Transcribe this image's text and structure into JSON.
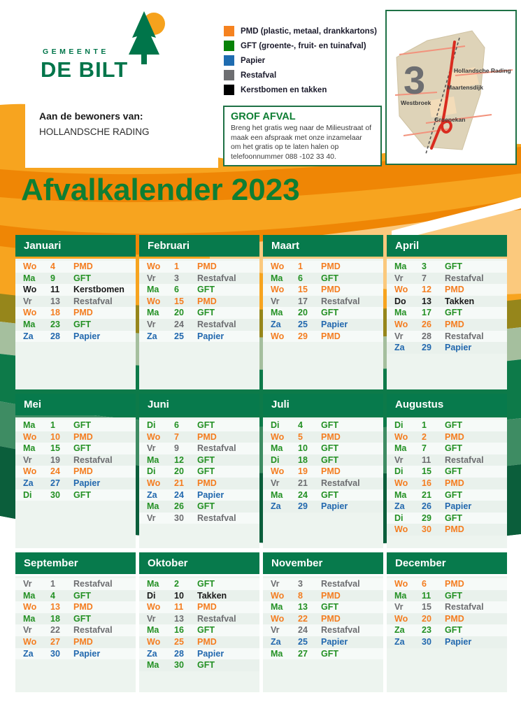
{
  "logo": {
    "top": "GEMEENTE",
    "bottom": "DE BILT"
  },
  "legend": {
    "items": [
      {
        "color": "#f58220",
        "label": "PMD (plastic, metaal, drankkartons)"
      },
      {
        "color": "#078207",
        "label": "GFT  (groente-, fruit- en tuinafval)"
      },
      {
        "color": "#1f6cb0",
        "label": "Papier"
      },
      {
        "color": "#6d6e71",
        "label": "Restafval"
      },
      {
        "color": "#000000",
        "label": "Kerstbomen en takken"
      }
    ]
  },
  "map": {
    "number": "3",
    "labels": [
      "Hollandsche Rading",
      "Maartensdijk",
      "Westbroek",
      "Groenekan"
    ]
  },
  "address": {
    "heading": "Aan de bewoners van:",
    "line": "HOLLANDSCHE RADING"
  },
  "grof_afval": {
    "title": "GROF AFVAL",
    "body": "Breng het gratis weg naar de Milieustraat of maak een afspraak met onze inzamelaar om het gratis op te laten halen op telefoonnummer 088 -102 33 40."
  },
  "title": "Afvalkalender 2023",
  "brand_colors": {
    "header_green": "#077a4c",
    "title_green": "#0e7e33",
    "logo_green": "#00754a",
    "orange": "#f7a41f"
  },
  "waste_colors": {
    "PMD": "#f47d20",
    "GFT": "#239023",
    "Papier": "#2268ae",
    "Restafval": "#6d6e71",
    "Kerstbomen": "#1a1a1a",
    "Takken": "#1a1a1a"
  },
  "months": [
    {
      "name": "Januari",
      "entries": [
        {
          "day": "Wo",
          "date": "4",
          "type": "PMD"
        },
        {
          "day": "Ma",
          "date": "9",
          "type": "GFT"
        },
        {
          "day": "Wo",
          "date": "11",
          "type": "Kerstbomen"
        },
        {
          "day": "Vr",
          "date": "13",
          "type": "Restafval"
        },
        {
          "day": "Wo",
          "date": "18",
          "type": "PMD"
        },
        {
          "day": "Ma",
          "date": "23",
          "type": "GFT"
        },
        {
          "day": "Za",
          "date": "28",
          "type": "Papier"
        }
      ]
    },
    {
      "name": "Februari",
      "entries": [
        {
          "day": "Wo",
          "date": "1",
          "type": "PMD"
        },
        {
          "day": "Vr",
          "date": "3",
          "type": "Restafval"
        },
        {
          "day": "Ma",
          "date": "6",
          "type": "GFT"
        },
        {
          "day": "Wo",
          "date": "15",
          "type": "PMD"
        },
        {
          "day": "Ma",
          "date": "20",
          "type": "GFT"
        },
        {
          "day": "Vr",
          "date": "24",
          "type": "Restafval"
        },
        {
          "day": "Za",
          "date": "25",
          "type": "Papier"
        }
      ]
    },
    {
      "name": "Maart",
      "entries": [
        {
          "day": "Wo",
          "date": "1",
          "type": "PMD"
        },
        {
          "day": "Ma",
          "date": "6",
          "type": "GFT"
        },
        {
          "day": "Wo",
          "date": "15",
          "type": "PMD"
        },
        {
          "day": "Vr",
          "date": "17",
          "type": "Restafval"
        },
        {
          "day": "Ma",
          "date": "20",
          "type": "GFT"
        },
        {
          "day": "Za",
          "date": "25",
          "type": "Papier"
        },
        {
          "day": "Wo",
          "date": "29",
          "type": "PMD"
        }
      ]
    },
    {
      "name": "April",
      "entries": [
        {
          "day": "Ma",
          "date": "3",
          "type": "GFT"
        },
        {
          "day": "Vr",
          "date": "7",
          "type": "Restafval"
        },
        {
          "day": "Wo",
          "date": "12",
          "type": "PMD"
        },
        {
          "day": "Do",
          "date": "13",
          "type": "Takken"
        },
        {
          "day": "Ma",
          "date": "17",
          "type": "GFT"
        },
        {
          "day": "Wo",
          "date": "26",
          "type": "PMD"
        },
        {
          "day": "Vr",
          "date": "28",
          "type": "Restafval"
        },
        {
          "day": "Za",
          "date": "29",
          "type": "Papier"
        }
      ]
    },
    {
      "name": "Mei",
      "entries": [
        {
          "day": "Ma",
          "date": "1",
          "type": "GFT"
        },
        {
          "day": "Wo",
          "date": "10",
          "type": "PMD"
        },
        {
          "day": "Ma",
          "date": "15",
          "type": "GFT"
        },
        {
          "day": "Vr",
          "date": "19",
          "type": "Restafval"
        },
        {
          "day": "Wo",
          "date": "24",
          "type": "PMD"
        },
        {
          "day": "Za",
          "date": "27",
          "type": "Papier"
        },
        {
          "day": "Di",
          "date": "30",
          "type": "GFT"
        }
      ]
    },
    {
      "name": "Juni",
      "entries": [
        {
          "day": "Di",
          "date": "6",
          "type": "GFT"
        },
        {
          "day": "Wo",
          "date": "7",
          "type": "PMD"
        },
        {
          "day": "Vr",
          "date": "9",
          "type": "Restafval"
        },
        {
          "day": "Ma",
          "date": "12",
          "type": "GFT"
        },
        {
          "day": "Di",
          "date": "20",
          "type": "GFT"
        },
        {
          "day": "Wo",
          "date": "21",
          "type": "PMD"
        },
        {
          "day": "Za",
          "date": "24",
          "type": "Papier"
        },
        {
          "day": "Ma",
          "date": "26",
          "type": "GFT"
        },
        {
          "day": "Vr",
          "date": "30",
          "type": "Restafval"
        }
      ]
    },
    {
      "name": "Juli",
      "entries": [
        {
          "day": "Di",
          "date": "4",
          "type": "GFT"
        },
        {
          "day": "Wo",
          "date": "5",
          "type": "PMD"
        },
        {
          "day": "Ma",
          "date": "10",
          "type": "GFT"
        },
        {
          "day": "Di",
          "date": "18",
          "type": "GFT"
        },
        {
          "day": "Wo",
          "date": "19",
          "type": "PMD"
        },
        {
          "day": "Vr",
          "date": "21",
          "type": "Restafval"
        },
        {
          "day": "Ma",
          "date": "24",
          "type": "GFT"
        },
        {
          "day": "Za",
          "date": "29",
          "type": "Papier"
        }
      ]
    },
    {
      "name": "Augustus",
      "entries": [
        {
          "day": "Di",
          "date": "1",
          "type": "GFT"
        },
        {
          "day": "Wo",
          "date": "2",
          "type": "PMD"
        },
        {
          "day": "Ma",
          "date": "7",
          "type": "GFT"
        },
        {
          "day": "Vr",
          "date": "11",
          "type": "Restafval"
        },
        {
          "day": "Di",
          "date": "15",
          "type": "GFT"
        },
        {
          "day": "Wo",
          "date": "16",
          "type": "PMD"
        },
        {
          "day": "Ma",
          "date": "21",
          "type": "GFT"
        },
        {
          "day": "Za",
          "date": "26",
          "type": "Papier"
        },
        {
          "day": "Di",
          "date": "29",
          "type": "GFT"
        },
        {
          "day": "Wo",
          "date": "30",
          "type": "PMD"
        }
      ]
    },
    {
      "name": "September",
      "entries": [
        {
          "day": "Vr",
          "date": "1",
          "type": "Restafval"
        },
        {
          "day": "Ma",
          "date": "4",
          "type": "GFT"
        },
        {
          "day": "Wo",
          "date": "13",
          "type": "PMD"
        },
        {
          "day": "Ma",
          "date": "18",
          "type": "GFT"
        },
        {
          "day": "Vr",
          "date": "22",
          "type": "Restafval"
        },
        {
          "day": "Wo",
          "date": "27",
          "type": "PMD"
        },
        {
          "day": "Za",
          "date": "30",
          "type": "Papier"
        }
      ]
    },
    {
      "name": "Oktober",
      "entries": [
        {
          "day": "Ma",
          "date": "2",
          "type": "GFT"
        },
        {
          "day": "Di",
          "date": "10",
          "type": "Takken"
        },
        {
          "day": "Wo",
          "date": "11",
          "type": "PMD"
        },
        {
          "day": "Vr",
          "date": "13",
          "type": "Restafval"
        },
        {
          "day": "Ma",
          "date": "16",
          "type": "GFT"
        },
        {
          "day": "Wo",
          "date": "25",
          "type": "PMD"
        },
        {
          "day": "Za",
          "date": "28",
          "type": "Papier"
        },
        {
          "day": "Ma",
          "date": "30",
          "type": "GFT"
        }
      ]
    },
    {
      "name": "November",
      "entries": [
        {
          "day": "Vr",
          "date": "3",
          "type": "Restafval"
        },
        {
          "day": "Wo",
          "date": "8",
          "type": "PMD"
        },
        {
          "day": "Ma",
          "date": "13",
          "type": "GFT"
        },
        {
          "day": "Wo",
          "date": "22",
          "type": "PMD"
        },
        {
          "day": "Vr",
          "date": "24",
          "type": "Restafval"
        },
        {
          "day": "Za",
          "date": "25",
          "type": "Papier"
        },
        {
          "day": "Ma",
          "date": "27",
          "type": "GFT"
        }
      ]
    },
    {
      "name": "December",
      "entries": [
        {
          "day": "Wo",
          "date": "6",
          "type": "PMD"
        },
        {
          "day": "Ma",
          "date": "11",
          "type": "GFT"
        },
        {
          "day": "Vr",
          "date": "15",
          "type": "Restafval"
        },
        {
          "day": "Wo",
          "date": "20",
          "type": "PMD"
        },
        {
          "day": "Za",
          "date": "23",
          "type": "GFT"
        },
        {
          "day": "Za",
          "date": "30",
          "type": "Papier"
        }
      ]
    }
  ]
}
